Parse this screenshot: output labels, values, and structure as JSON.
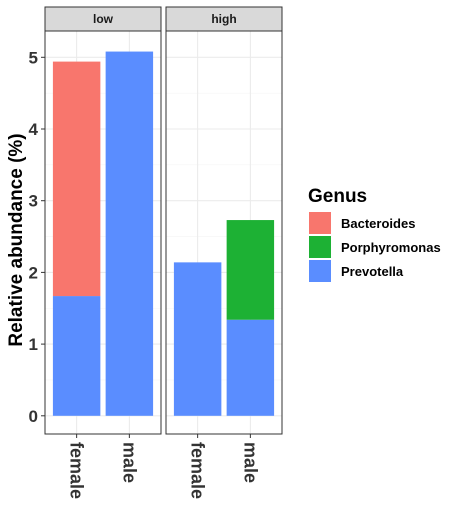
{
  "chart_data": {
    "type": "bar",
    "stacked": true,
    "ylabel": "Relative abundance (%)",
    "ylim": [
      0,
      5.3
    ],
    "yticks": [
      0,
      1,
      2,
      3,
      4,
      5
    ],
    "grid": true,
    "legend": {
      "title": "Genus",
      "placement": "right",
      "entries": [
        {
          "name": "Bacteroides",
          "color": "#F8766D"
        },
        {
          "name": "Porphyromonas",
          "color": "#1DB134"
        },
        {
          "name": "Prevotella",
          "color": "#5A8DFF"
        }
      ]
    },
    "facets": [
      {
        "label": "low",
        "categories": [
          "female",
          "male"
        ],
        "series": [
          {
            "name": "Prevotella",
            "values": [
              1.67,
              5.08
            ]
          },
          {
            "name": "Porphyromonas",
            "values": [
              0,
              0
            ]
          },
          {
            "name": "Bacteroides",
            "values": [
              3.27,
              0
            ]
          }
        ]
      },
      {
        "label": "high",
        "categories": [
          "female",
          "male"
        ],
        "series": [
          {
            "name": "Prevotella",
            "values": [
              2.14,
              1.34
            ]
          },
          {
            "name": "Porphyromonas",
            "values": [
              0,
              1.39
            ]
          },
          {
            "name": "Bacteroides",
            "values": [
              0,
              0
            ]
          }
        ]
      }
    ]
  }
}
